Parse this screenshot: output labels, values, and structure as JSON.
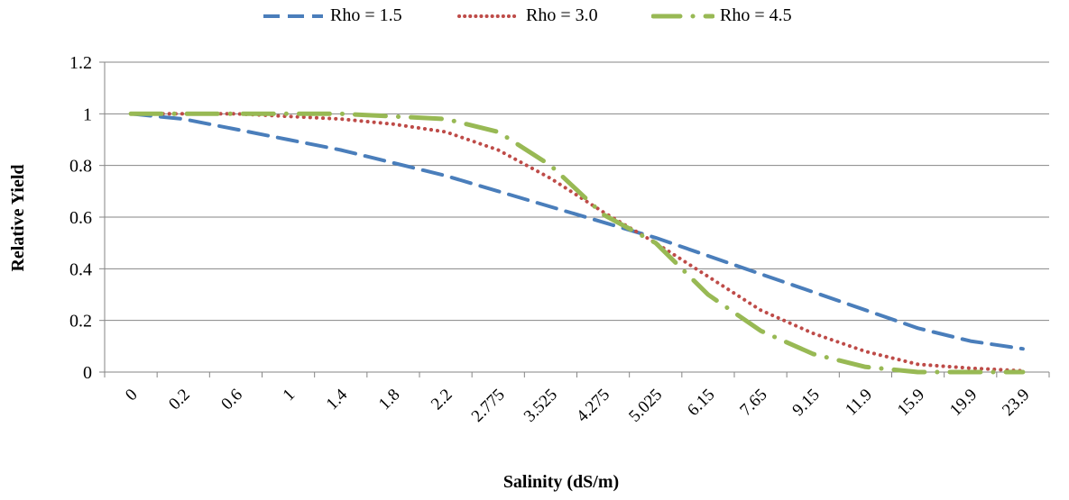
{
  "chart_data": {
    "type": "line",
    "xlabel": "Salinity (dS/m)",
    "ylabel": "Relative Yield",
    "ylim": [
      0,
      1.2
    ],
    "yticks": [
      "0",
      "0.2",
      "0.4",
      "0.6",
      "0.8",
      "1",
      "1.2"
    ],
    "categories": [
      "0",
      "0.2",
      "0.6",
      "1",
      "1.4",
      "1.8",
      "2.2",
      "2.775",
      "3.525",
      "4.275",
      "5.025",
      "6.15",
      "7.65",
      "9.15",
      "11.9",
      "15.9",
      "19.9",
      "23.9"
    ],
    "grid": "horizontal",
    "legend_position": "top",
    "series": [
      {
        "name": "Rho = 1.5",
        "color": "#4a7ebb",
        "style": "dashed",
        "values": [
          1.0,
          0.98,
          0.94,
          0.9,
          0.86,
          0.81,
          0.76,
          0.7,
          0.64,
          0.58,
          0.52,
          0.45,
          0.38,
          0.31,
          0.24,
          0.17,
          0.12,
          0.09
        ]
      },
      {
        "name": "Rho = 3.0",
        "color": "#be4b48",
        "style": "dotted",
        "values": [
          1.0,
          1.0,
          1.0,
          0.99,
          0.98,
          0.96,
          0.93,
          0.86,
          0.75,
          0.62,
          0.5,
          0.37,
          0.24,
          0.15,
          0.08,
          0.03,
          0.015,
          0.005
        ]
      },
      {
        "name": "Rho = 4.5",
        "color": "#98b954",
        "style": "dash-dot",
        "values": [
          1.0,
          1.0,
          1.0,
          1.0,
          1.0,
          0.99,
          0.98,
          0.93,
          0.8,
          0.61,
          0.5,
          0.3,
          0.16,
          0.07,
          0.02,
          0.0,
          0.0,
          0.0
        ]
      }
    ]
  }
}
